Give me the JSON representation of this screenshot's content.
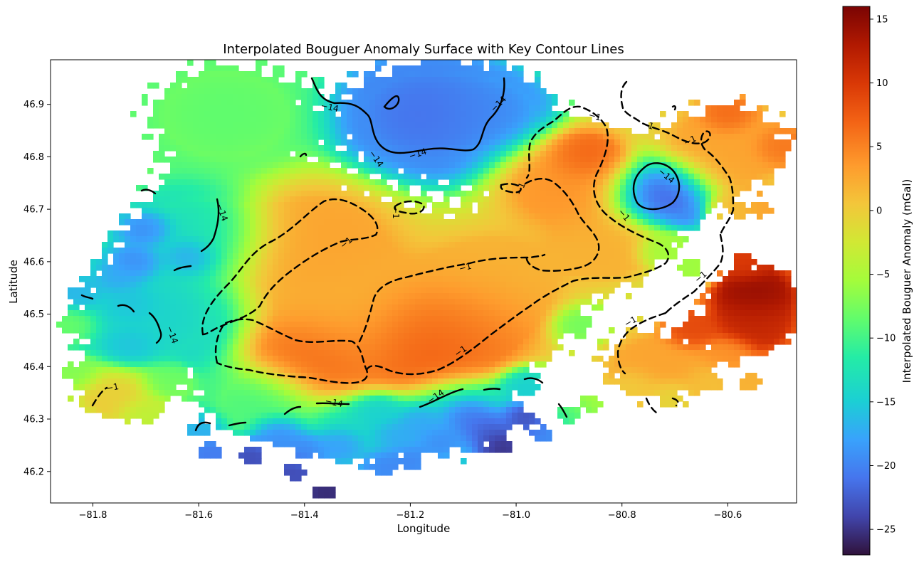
{
  "chart_data": {
    "type": "heatmap",
    "title": "Interpolated Bouguer Anomaly Surface with Key Contour Lines",
    "xlabel": "Longitude",
    "ylabel": "Latitude",
    "xlim": [
      -81.88,
      -80.47
    ],
    "ylim": [
      46.14,
      46.985
    ],
    "x_ticks": [
      -81.8,
      -81.6,
      -81.4,
      -81.2,
      -81.0,
      -80.8,
      -80.6
    ],
    "x_tick_labels": [
      "−81.8",
      "−81.6",
      "−81.4",
      "−81.2",
      "−81.0",
      "−80.8",
      "−80.6"
    ],
    "y_ticks": [
      46.2,
      46.3,
      46.4,
      46.5,
      46.6,
      46.7,
      46.8,
      46.9
    ],
    "y_tick_labels": [
      "46.2",
      "46.3",
      "46.4",
      "46.5",
      "46.6",
      "46.7",
      "46.8",
      "46.9"
    ],
    "colorbar": {
      "label": "Interpolated Bouguer Anomaly (mGal)",
      "range": [
        -27,
        16
      ],
      "ticks": [
        -25,
        -20,
        -15,
        -10,
        -5,
        0,
        5,
        10,
        15
      ],
      "tick_labels": [
        "−25",
        "−20",
        "−15",
        "−10",
        "−5",
        "0",
        "5",
        "10",
        "15"
      ],
      "colormap": "turbo"
    },
    "contour_levels": [
      {
        "level": -14,
        "label": "−14",
        "style": "solid"
      },
      {
        "level": -1,
        "label": "−1",
        "style": "dashed"
      }
    ],
    "blobs": [
      {
        "lon": -81.38,
        "lat": 46.63,
        "r": 0.13,
        "v": 3
      },
      {
        "lon": -81.3,
        "lat": 46.5,
        "r": 0.12,
        "v": 2
      },
      {
        "lon": -81.18,
        "lat": 46.45,
        "r": 0.1,
        "v": 8
      },
      {
        "lon": -81.1,
        "lat": 46.48,
        "r": 0.1,
        "v": 6
      },
      {
        "lon": -81.38,
        "lat": 46.42,
        "r": 0.09,
        "v": 7
      },
      {
        "lon": -81.05,
        "lat": 46.56,
        "r": 0.12,
        "v": 2
      },
      {
        "lon": -80.9,
        "lat": 46.75,
        "r": 0.1,
        "v": 4
      },
      {
        "lon": -80.87,
        "lat": 46.8,
        "r": 0.05,
        "v": 8
      },
      {
        "lon": -80.83,
        "lat": 46.63,
        "r": 0.08,
        "v": 2
      },
      {
        "lon": -80.73,
        "lat": 46.73,
        "r": 0.07,
        "v": -24
      },
      {
        "lon": -81.17,
        "lat": 46.88,
        "r": 0.12,
        "v": -22
      },
      {
        "lon": -81.05,
        "lat": 46.88,
        "r": 0.08,
        "v": -20
      },
      {
        "lon": -80.6,
        "lat": 46.82,
        "r": 0.1,
        "v": 3
      },
      {
        "lon": -80.55,
        "lat": 46.54,
        "r": 0.06,
        "v": 15
      },
      {
        "lon": -80.55,
        "lat": 46.48,
        "r": 0.06,
        "v": 12
      },
      {
        "lon": -80.73,
        "lat": 46.4,
        "r": 0.08,
        "v": 3
      },
      {
        "lon": -81.7,
        "lat": 46.5,
        "r": 0.12,
        "v": -15
      },
      {
        "lon": -81.6,
        "lat": 46.65,
        "r": 0.1,
        "v": -14
      },
      {
        "lon": -81.55,
        "lat": 46.88,
        "r": 0.12,
        "v": -9
      },
      {
        "lon": -81.75,
        "lat": 46.35,
        "r": 0.06,
        "v": 0
      },
      {
        "lon": -81.1,
        "lat": 46.3,
        "r": 0.08,
        "v": -16
      },
      {
        "lon": -81.3,
        "lat": 46.28,
        "r": 0.07,
        "v": -14
      },
      {
        "lon": -81.48,
        "lat": 46.33,
        "r": 0.08,
        "v": -10
      }
    ],
    "point_values": [
      {
        "lon": -81.7,
        "lat": 46.66,
        "v": -20
      },
      {
        "lon": -81.72,
        "lat": 46.6,
        "v": -20
      },
      {
        "lon": -81.62,
        "lat": 46.61,
        "v": -18
      },
      {
        "lon": -81.75,
        "lat": 46.57,
        "v": -18
      },
      {
        "lon": -81.83,
        "lat": 46.54,
        "v": -17
      },
      {
        "lon": -81.73,
        "lat": 46.52,
        "v": -16
      },
      {
        "lon": -81.73,
        "lat": 46.44,
        "v": -16
      },
      {
        "lon": -81.84,
        "lat": 46.48,
        "v": -8
      },
      {
        "lon": -81.6,
        "lat": 46.28,
        "v": -17
      },
      {
        "lon": -81.58,
        "lat": 46.24,
        "v": -21
      },
      {
        "lon": -81.5,
        "lat": 46.23,
        "v": -24
      },
      {
        "lon": -81.45,
        "lat": 46.27,
        "v": -20
      },
      {
        "lon": -81.42,
        "lat": 46.2,
        "v": -24
      },
      {
        "lon": -81.4,
        "lat": 46.24,
        "v": -20
      },
      {
        "lon": -81.36,
        "lat": 46.16,
        "v": -26
      },
      {
        "lon": -81.33,
        "lat": 46.25,
        "v": -19
      },
      {
        "lon": -81.25,
        "lat": 46.21,
        "v": -20
      },
      {
        "lon": -81.23,
        "lat": 46.27,
        "v": -18
      },
      {
        "lon": -81.2,
        "lat": 46.22,
        "v": -20
      },
      {
        "lon": -81.18,
        "lat": 46.29,
        "v": -18
      },
      {
        "lon": -81.14,
        "lat": 46.26,
        "v": -20
      },
      {
        "lon": -81.09,
        "lat": 46.3,
        "v": -22
      },
      {
        "lon": -81.06,
        "lat": 46.28,
        "v": -24
      },
      {
        "lon": -81.03,
        "lat": 46.25,
        "v": -26
      },
      {
        "lon": -80.98,
        "lat": 46.3,
        "v": -24
      },
      {
        "lon": -80.95,
        "lat": 46.27,
        "v": -20
      },
      {
        "lon": -81.26,
        "lat": 46.31,
        "v": -15
      },
      {
        "lon": -80.9,
        "lat": 46.31,
        "v": -10
      },
      {
        "lon": -80.98,
        "lat": 46.36,
        "v": -15
      },
      {
        "lon": -81.84,
        "lat": 46.39,
        "v": -7
      },
      {
        "lon": -81.7,
        "lat": 46.31,
        "v": -4
      },
      {
        "lon": -81.66,
        "lat": 46.37,
        "v": -8
      },
      {
        "lon": -80.63,
        "lat": 46.37,
        "v": 1
      },
      {
        "lon": -80.56,
        "lat": 46.37,
        "v": 2
      },
      {
        "lon": -80.6,
        "lat": 46.42,
        "v": 4
      },
      {
        "lon": -80.5,
        "lat": 46.82,
        "v": 6
      },
      {
        "lon": -80.6,
        "lat": 46.88,
        "v": 7
      },
      {
        "lon": -80.67,
        "lat": 46.47,
        "v": 9
      },
      {
        "lon": -80.57,
        "lat": 46.6,
        "v": 10
      },
      {
        "lon": -80.78,
        "lat": 46.36,
        "v": 0
      },
      {
        "lon": -80.71,
        "lat": 46.34,
        "v": -1
      },
      {
        "lon": -80.86,
        "lat": 46.33,
        "v": -6
      },
      {
        "lon": -80.88,
        "lat": 46.48,
        "v": -8
      },
      {
        "lon": -80.67,
        "lat": 46.59,
        "v": -6
      },
      {
        "lon": -80.72,
        "lat": 46.62,
        "v": -6
      },
      {
        "lon": -80.58,
        "lat": 46.7,
        "v": 1
      },
      {
        "lon": -80.54,
        "lat": 46.7,
        "v": 3
      }
    ]
  }
}
